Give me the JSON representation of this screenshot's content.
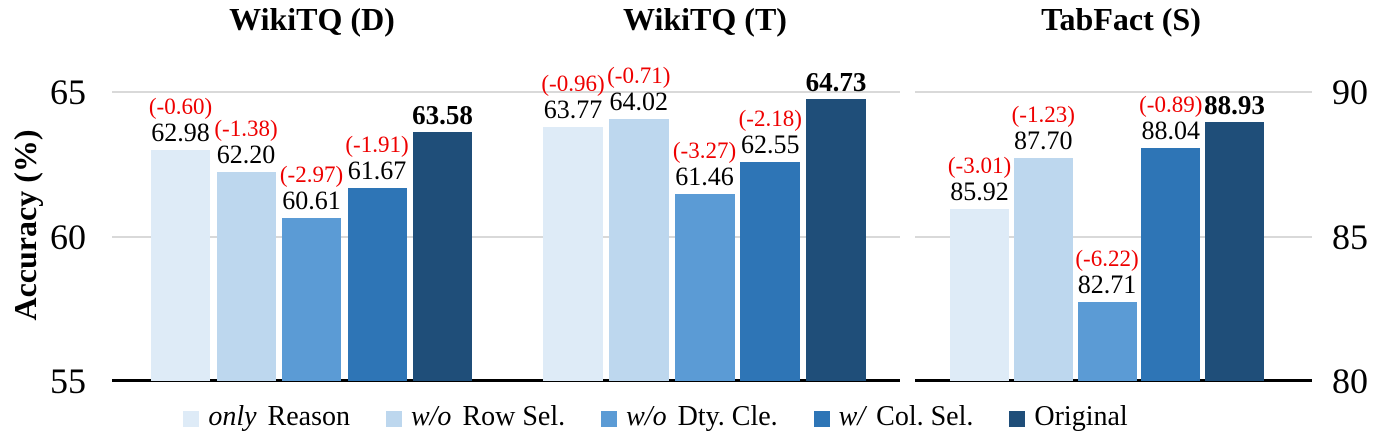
{
  "figure": {
    "y_axis_label": "Accuracy (%)",
    "left_axis_ticks": [
      "65",
      "60",
      "55"
    ],
    "right_axis_ticks": [
      "90",
      "85",
      "80"
    ]
  },
  "colors": {
    "bar_shades": [
      "#deebf7",
      "#bdd7ee",
      "#5b9bd5",
      "#2e75b6",
      "#1f4e79"
    ],
    "delta_text": "#ee0000",
    "gridline": "#d9d9d9",
    "axis_line": "#000000"
  },
  "legend": {
    "items": [
      {
        "prefix": "only",
        "label": "Reason",
        "color": "#deebf7"
      },
      {
        "prefix": "w/o",
        "label": "Row Sel.",
        "color": "#bdd7ee"
      },
      {
        "prefix": "w/o",
        "label": "Dty. Cle.",
        "color": "#5b9bd5"
      },
      {
        "prefix": "w/",
        "label": "Col. Sel.",
        "color": "#2e75b6"
      },
      {
        "prefix": "",
        "label": "Original",
        "color": "#1f4e79"
      }
    ]
  },
  "chart_data": [
    {
      "type": "bar",
      "title": "WikiTQ (D)",
      "ylabel": "Accuracy (%)",
      "ylim": [
        55,
        65
      ],
      "yticks": [
        55,
        60,
        65
      ],
      "grid": true,
      "legend_position": "bottom",
      "categories": [
        "only Reason",
        "w/o Row Sel.",
        "w/o Dty. Cle.",
        "w/ Col. Sel.",
        "Original"
      ],
      "values": [
        62.98,
        62.2,
        60.61,
        61.67,
        63.58
      ],
      "value_labels": [
        "62.98",
        "62.20",
        "60.61",
        "61.67",
        "63.58"
      ],
      "delta_labels": [
        "(-0.60)",
        "(-1.38)",
        "(-2.97)",
        "(-1.91)",
        ""
      ]
    },
    {
      "type": "bar",
      "title": "WikiTQ (T)",
      "ylabel": "Accuracy (%)",
      "ylim": [
        55,
        65
      ],
      "yticks": [
        55,
        60,
        65
      ],
      "grid": true,
      "legend_position": "bottom",
      "categories": [
        "only Reason",
        "w/o Row Sel.",
        "w/o Dty. Cle.",
        "w/ Col. Sel.",
        "Original"
      ],
      "values": [
        63.77,
        64.02,
        61.46,
        62.55,
        64.73
      ],
      "value_labels": [
        "63.77",
        "64.02",
        "61.46",
        "62.55",
        "64.73"
      ],
      "delta_labels": [
        "(-0.96)",
        "(-0.71)",
        "(-3.27)",
        "(-2.18)",
        ""
      ]
    },
    {
      "type": "bar",
      "title": "TabFact (S)",
      "ylabel": "Accuracy (%)",
      "ylim": [
        80,
        90
      ],
      "yticks": [
        80,
        85,
        90
      ],
      "grid": true,
      "legend_position": "bottom",
      "categories": [
        "only Reason",
        "w/o Row Sel.",
        "w/o Dty. Cle.",
        "w/ Col. Sel.",
        "Original"
      ],
      "values": [
        85.92,
        87.7,
        82.71,
        88.04,
        88.93
      ],
      "value_labels": [
        "85.92",
        "87.70",
        "82.71",
        "88.04",
        "88.93"
      ],
      "delta_labels": [
        "(-3.01)",
        "(-1.23)",
        "(-6.22)",
        "(-0.89)",
        ""
      ]
    }
  ]
}
